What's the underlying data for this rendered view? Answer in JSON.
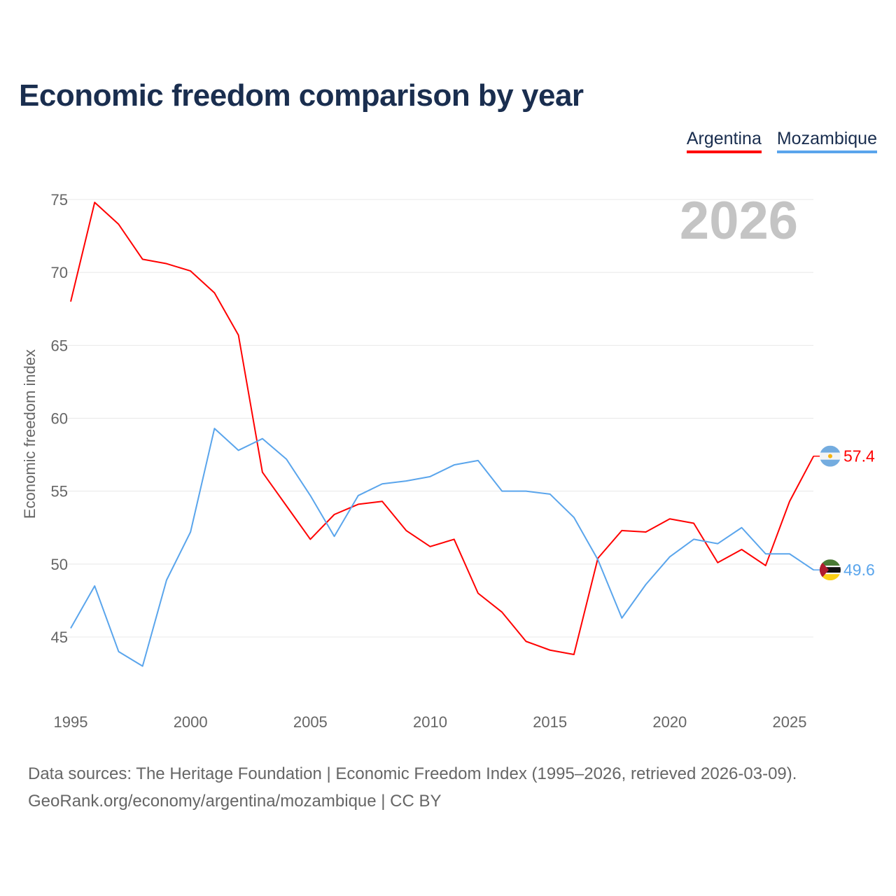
{
  "chart_data": {
    "type": "line",
    "title": "Economic freedom comparison by year",
    "ylabel": "Economic freedom index",
    "xlabel": "",
    "ylim": [
      41,
      76
    ],
    "xlim": [
      1995,
      2026
    ],
    "yticks": [
      45,
      50,
      55,
      60,
      65,
      70,
      75
    ],
    "xticks": [
      1995,
      2000,
      2005,
      2010,
      2015,
      2020,
      2025
    ],
    "grid": true,
    "legend_placement": "top-right",
    "year_label": "2026",
    "x": [
      1995,
      1996,
      1997,
      1998,
      1999,
      2000,
      2001,
      2002,
      2003,
      2004,
      2005,
      2006,
      2007,
      2008,
      2009,
      2010,
      2011,
      2012,
      2013,
      2014,
      2015,
      2016,
      2017,
      2018,
      2019,
      2020,
      2021,
      2022,
      2023,
      2024,
      2025,
      2026
    ],
    "series": [
      {
        "name": "Argentina",
        "color": "#ff0000",
        "end_label": "57.4",
        "values": [
          68.0,
          74.8,
          73.3,
          70.9,
          70.6,
          70.1,
          68.6,
          65.7,
          56.3,
          54.0,
          51.7,
          53.4,
          54.1,
          54.3,
          52.3,
          51.2,
          51.7,
          48.0,
          46.7,
          44.7,
          44.1,
          43.8,
          50.4,
          52.3,
          52.2,
          53.1,
          52.8,
          50.1,
          51.0,
          49.9,
          54.3,
          57.4
        ]
      },
      {
        "name": "Mozambique",
        "color": "#5aa5ec",
        "end_label": "49.6",
        "values": [
          45.6,
          48.5,
          44.0,
          43.0,
          48.9,
          52.2,
          59.3,
          57.8,
          58.6,
          57.2,
          54.7,
          51.9,
          54.7,
          55.5,
          55.7,
          56.0,
          56.8,
          57.1,
          55.0,
          55.0,
          54.8,
          53.2,
          50.3,
          46.3,
          48.6,
          50.5,
          51.7,
          51.4,
          52.5,
          50.7,
          50.7,
          49.6
        ]
      }
    ]
  },
  "source": {
    "line1": "Data sources: The Heritage Foundation | Economic Freedom Index (1995–2026, retrieved 2026-03-09).",
    "line2": "GeoRank.org/economy/argentina/mozambique | CC BY"
  }
}
